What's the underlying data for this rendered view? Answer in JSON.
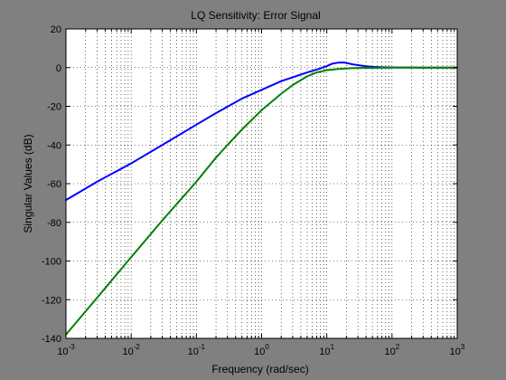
{
  "figure": {
    "background": "#808080"
  },
  "chart_data": {
    "type": "line",
    "title": "LQ Sensitivity: Error Signal",
    "xlabel": "Frequency (rad/sec)",
    "ylabel": "Singular Values (dB)",
    "xscale": "log",
    "xlim": [
      0.001,
      1000
    ],
    "ylim": [
      -140,
      20
    ],
    "grid": true,
    "xticks": [
      {
        "value": 0.001,
        "base": "10",
        "exp": "-3"
      },
      {
        "value": 0.01,
        "base": "10",
        "exp": "-2"
      },
      {
        "value": 0.1,
        "base": "10",
        "exp": "-1"
      },
      {
        "value": 1,
        "base": "10",
        "exp": "0"
      },
      {
        "value": 10,
        "base": "10",
        "exp": "1"
      },
      {
        "value": 100,
        "base": "10",
        "exp": "2"
      },
      {
        "value": 1000,
        "base": "10",
        "exp": "3"
      }
    ],
    "yticks": [
      20,
      0,
      -20,
      -40,
      -60,
      -80,
      -100,
      -120,
      -140
    ],
    "series": [
      {
        "color": "#0000ff",
        "x": [
          0.001,
          0.003,
          0.01,
          0.03,
          0.1,
          0.2,
          0.5,
          1,
          2,
          3,
          5,
          7,
          10,
          12,
          15,
          18,
          20,
          25,
          30,
          40,
          50,
          70,
          100,
          300,
          1000
        ],
        "y": [
          -68.5,
          -59,
          -49.5,
          -40,
          -29.5,
          -23.5,
          -16,
          -11.5,
          -7,
          -5,
          -2.5,
          -1,
          0.8,
          2,
          2.6,
          2.7,
          2.4,
          1.7,
          1.3,
          0.7,
          0.4,
          0.2,
          0.1,
          0,
          0
        ]
      },
      {
        "color": "#008000",
        "x": [
          0.001,
          0.003,
          0.01,
          0.03,
          0.1,
          0.2,
          0.3,
          0.5,
          1,
          2,
          3,
          5,
          7,
          10,
          15,
          20,
          30,
          50,
          100,
          1000
        ],
        "y": [
          -138,
          -119,
          -98,
          -79,
          -59,
          -46.5,
          -40,
          -32,
          -22,
          -13.5,
          -9,
          -4.5,
          -2.5,
          -1.3,
          -0.7,
          -0.4,
          -0.2,
          -0.1,
          0,
          0
        ]
      }
    ]
  }
}
